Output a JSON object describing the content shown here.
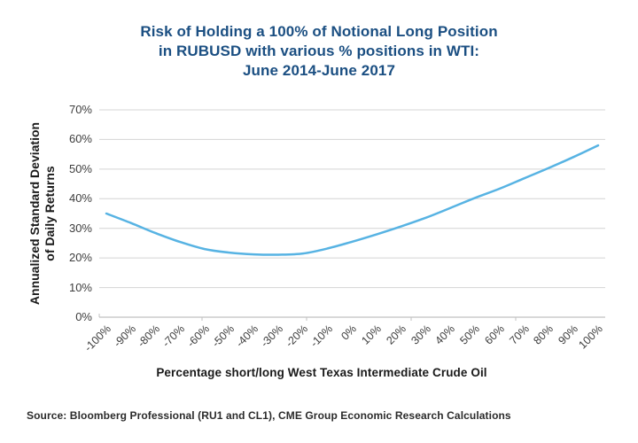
{
  "page": {
    "source": "Source: Bloomberg Professional (RU1 and CL1), CME Group Economic Research Calculations"
  },
  "colors": {
    "title_navy": "#1b4f82",
    "line_blue": "#57b3e3",
    "gridline_gray": "#d4d4d4",
    "axis_gray": "#c0c0c0",
    "tick_text": "#3d3d3d"
  },
  "chart_data": {
    "type": "line",
    "title": "Risk of Holding a 100% of Notional Long Position in RUBUSD with various % positions in WTI: June 2014-June 2017",
    "title_lines": [
      "Risk of Holding a 100% of Notional Long Position",
      "in RUBUSD with various % positions in WTI:",
      "June 2014-June 2017"
    ],
    "xlabel": "Percentage short/long West Texas Intermediate Crude Oil",
    "ylabel": "Annualized Standard Deviation of Daily Returns",
    "ylabel_lines": [
      "Annualized Standard Deviation",
      "of Daily Returns"
    ],
    "x": [
      -100,
      -90,
      -80,
      -70,
      -60,
      -50,
      -40,
      -30,
      -20,
      -10,
      0,
      10,
      20,
      30,
      40,
      50,
      60,
      70,
      80,
      90,
      100
    ],
    "x_tick_labels": [
      "-100%",
      "-90%",
      "-80%",
      "-70%",
      "-60%",
      "-50%",
      "-40%",
      "-30%",
      "-20%",
      "-10%",
      "0%",
      "10%",
      "20%",
      "30%",
      "40%",
      "50%",
      "60%",
      "70%",
      "80%",
      "90%",
      "100%"
    ],
    "values": [
      35,
      31.8,
      28.4,
      25.4,
      23,
      21.8,
      21.2,
      21.1,
      21.5,
      23.2,
      25.5,
      28,
      30.7,
      33.6,
      36.9,
      40.3,
      43.4,
      46.9,
      50.4,
      54.1,
      58
    ],
    "y_tick_labels": [
      "0%",
      "10%",
      "20%",
      "30%",
      "40%",
      "50%",
      "60%",
      "70%"
    ],
    "ylim": [
      0,
      70
    ],
    "grid": "horizontal",
    "legend": "none"
  }
}
